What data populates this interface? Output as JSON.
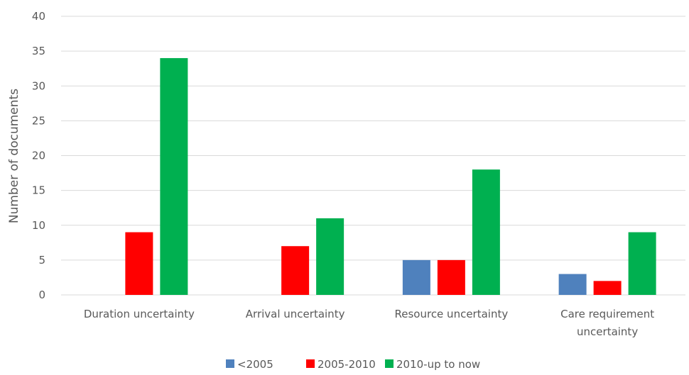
{
  "chart_data": {
    "type": "bar",
    "categories": [
      [
        "Duration uncertainty"
      ],
      [
        "Arrival uncertainty"
      ],
      [
        "Resource uncertainty"
      ],
      [
        "Care requirement",
        "uncertainty"
      ]
    ],
    "series": [
      {
        "name": "<2005",
        "color": "#4F81BD",
        "values": [
          0,
          0,
          5,
          3
        ]
      },
      {
        "name": "2005-2010",
        "color": "#FF0000",
        "values": [
          9,
          7,
          5,
          2
        ]
      },
      {
        "name": "2010-up to now",
        "color": "#00B050",
        "values": [
          34,
          11,
          18,
          9
        ]
      }
    ],
    "title": "",
    "xlabel": "",
    "ylabel": "Number of documents",
    "ylim": [
      0,
      40
    ],
    "yticks": [
      0,
      5,
      10,
      15,
      20,
      25,
      30,
      35,
      40
    ],
    "grid": true,
    "legend_position": "bottom"
  }
}
